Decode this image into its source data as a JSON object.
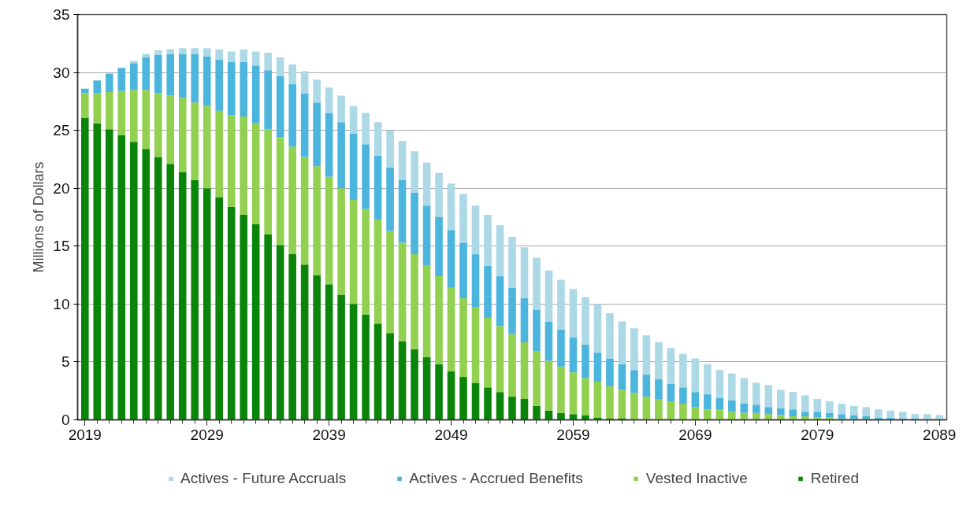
{
  "chart_data": {
    "type": "bar",
    "stacked": true,
    "ylabel": "Millions of Dollars",
    "x": [
      2019,
      2020,
      2021,
      2022,
      2023,
      2024,
      2025,
      2026,
      2027,
      2028,
      2029,
      2030,
      2031,
      2032,
      2033,
      2034,
      2035,
      2036,
      2037,
      2038,
      2039,
      2040,
      2041,
      2042,
      2043,
      2044,
      2045,
      2046,
      2047,
      2048,
      2049,
      2050,
      2051,
      2052,
      2053,
      2054,
      2055,
      2056,
      2057,
      2058,
      2059,
      2060,
      2061,
      2062,
      2063,
      2064,
      2065,
      2066,
      2067,
      2068,
      2069,
      2070,
      2071,
      2072,
      2073,
      2074,
      2075,
      2076,
      2077,
      2078,
      2079,
      2080,
      2081,
      2082,
      2083,
      2084,
      2085,
      2086,
      2087,
      2088,
      2089
    ],
    "series": [
      {
        "name": "Retired",
        "color": "#0a850a",
        "values": [
          26.1,
          25.6,
          25.1,
          24.6,
          24.0,
          23.4,
          22.7,
          22.1,
          21.4,
          20.7,
          20.0,
          19.2,
          18.4,
          17.7,
          16.9,
          16.0,
          15.1,
          14.3,
          13.4,
          12.5,
          11.7,
          10.8,
          10.0,
          9.1,
          8.3,
          7.5,
          6.8,
          6.1,
          5.4,
          4.8,
          4.2,
          3.7,
          3.2,
          2.8,
          2.4,
          2.0,
          1.8,
          1.2,
          0.8,
          0.6,
          0.5,
          0.4,
          0.2,
          0.1,
          0.1,
          0,
          0,
          0,
          0,
          0,
          0,
          0,
          0,
          0,
          0,
          0,
          0,
          0,
          0,
          0,
          0,
          0,
          0,
          0,
          0,
          0,
          0,
          0,
          0,
          0,
          0
        ]
      },
      {
        "name": "Vested Inactive",
        "color": "#92d050",
        "values": [
          2.1,
          2.6,
          3.2,
          3.8,
          4.5,
          5.1,
          5.5,
          5.9,
          6.4,
          6.7,
          7.1,
          7.5,
          7.9,
          8.5,
          8.7,
          9.1,
          9.3,
          9.3,
          9.3,
          9.4,
          9.3,
          9.2,
          9.0,
          9.1,
          9.0,
          8.8,
          8.5,
          8.2,
          7.9,
          7.6,
          7.2,
          6.8,
          6.5,
          6.0,
          5.7,
          5.4,
          4.9,
          4.7,
          4.3,
          4.0,
          3.6,
          3.2,
          3.1,
          2.8,
          2.5,
          2.3,
          2.0,
          1.8,
          1.6,
          1.4,
          1.1,
          0.9,
          0.9,
          0.7,
          0.6,
          0.6,
          0.5,
          0.4,
          0.3,
          0.3,
          0.2,
          0.2,
          0.1,
          0.1,
          0.1,
          0,
          0,
          0,
          0,
          0,
          0
        ]
      },
      {
        "name": "Actives - Accrued Benefits",
        "color": "#4bb5de",
        "values": [
          0.4,
          1.1,
          1.6,
          2.0,
          2.3,
          2.8,
          3.3,
          3.6,
          3.8,
          4.2,
          4.3,
          4.4,
          4.6,
          4.7,
          5.0,
          5.1,
          5.3,
          5.4,
          5.5,
          5.5,
          5.5,
          5.7,
          5.7,
          5.6,
          5.5,
          5.5,
          5.4,
          5.3,
          5.2,
          5.1,
          5.0,
          4.8,
          4.6,
          4.5,
          4.3,
          4.0,
          3.8,
          3.6,
          3.4,
          3.2,
          3.0,
          2.9,
          2.5,
          2.4,
          2.2,
          2.0,
          1.9,
          1.7,
          1.5,
          1.4,
          1.3,
          1.3,
          1.0,
          1.0,
          0.8,
          0.7,
          0.6,
          0.6,
          0.6,
          0.4,
          0.5,
          0.4,
          0.4,
          0.3,
          0.2,
          0.2,
          0.2,
          0.1,
          0.1,
          0,
          0
        ]
      },
      {
        "name": "Actives - Future Accruals",
        "color": "#add8e6",
        "values": [
          0,
          0,
          0,
          0,
          0.2,
          0.3,
          0.4,
          0.4,
          0.5,
          0.5,
          0.7,
          0.9,
          0.9,
          1.1,
          1.2,
          1.5,
          1.6,
          1.7,
          1.9,
          2.0,
          2.2,
          2.3,
          2.4,
          2.7,
          2.9,
          3.2,
          3.4,
          3.6,
          3.7,
          3.8,
          4.0,
          4.2,
          4.2,
          4.4,
          4.4,
          4.4,
          4.4,
          4.5,
          4.4,
          4.3,
          4.2,
          4.1,
          4.2,
          3.9,
          3.7,
          3.6,
          3.4,
          3.2,
          3.1,
          2.9,
          2.9,
          2.6,
          2.4,
          2.3,
          2.2,
          1.9,
          1.9,
          1.6,
          1.5,
          1.4,
          1.1,
          1.0,
          0.9,
          0.8,
          0.8,
          0.7,
          0.6,
          0.6,
          0.4,
          0.5,
          0.4
        ]
      }
    ],
    "xlim": [
      2018.4,
      2089.6
    ],
    "xticks": [
      2019,
      2029,
      2039,
      2049,
      2059,
      2069,
      2079,
      2089
    ],
    "ylim": [
      0,
      35
    ],
    "yticks": [
      0,
      5,
      10,
      15,
      20,
      25,
      30,
      35
    ],
    "grid": "y",
    "legend": "bottom"
  }
}
